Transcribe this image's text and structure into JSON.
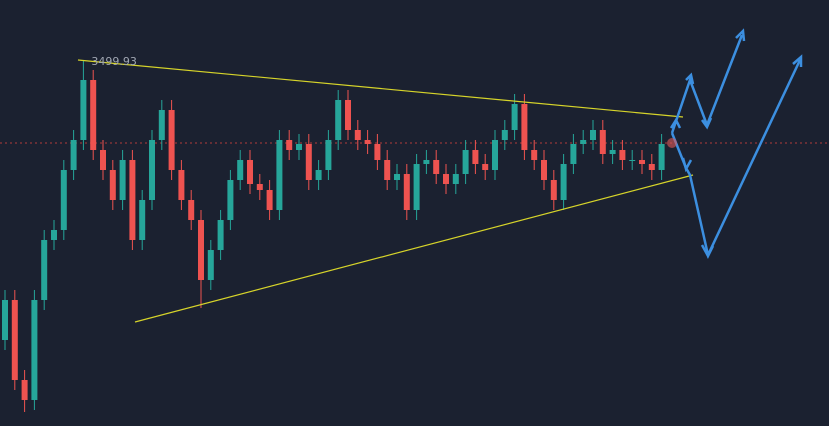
{
  "chart_data": {
    "type": "candlestick",
    "open": [
      3360,
      3380,
      3340,
      3330,
      3380,
      3410,
      3415,
      3445,
      3460,
      3490,
      3455,
      3445,
      3430,
      3450,
      3410,
      3430,
      3460,
      3475,
      3445,
      3430,
      3420,
      3390,
      3405,
      3420,
      3440,
      3450,
      3438,
      3435,
      3425,
      3460,
      3455,
      3458,
      3440,
      3445,
      3460,
      3480,
      3465,
      3460,
      3458,
      3450,
      3440,
      3443,
      3425,
      3448,
      3450,
      3443,
      3438,
      3443,
      3455,
      3448,
      3445,
      3460,
      3465,
      3478,
      3455,
      3450,
      3440,
      3430,
      3448,
      3458,
      3460,
      3465,
      3453,
      3455,
      3450,
      3450,
      3448,
      3445
    ],
    "high": [
      3385,
      3385,
      3345,
      3385,
      3415,
      3420,
      3450,
      3465,
      3499.93,
      3495,
      3460,
      3450,
      3455,
      3455,
      3435,
      3465,
      3480,
      3480,
      3450,
      3435,
      3425,
      3410,
      3425,
      3445,
      3455,
      3455,
      3443,
      3440,
      3465,
      3465,
      3463,
      3463,
      3450,
      3465,
      3485,
      3485,
      3470,
      3465,
      3463,
      3455,
      3448,
      3448,
      3453,
      3455,
      3455,
      3448,
      3448,
      3460,
      3460,
      3453,
      3465,
      3470,
      3483,
      3483,
      3460,
      3455,
      3445,
      3453,
      3463,
      3465,
      3470,
      3470,
      3460,
      3460,
      3455,
      3455,
      3453,
      3463
    ],
    "low": [
      3355,
      3335,
      3324,
      3325,
      3375,
      3405,
      3410,
      3440,
      3455,
      3450,
      3440,
      3425,
      3425,
      3405,
      3405,
      3425,
      3455,
      3440,
      3425,
      3415,
      3376,
      3385,
      3400,
      3415,
      3435,
      3433,
      3430,
      3420,
      3420,
      3450,
      3450,
      3435,
      3435,
      3440,
      3455,
      3460,
      3455,
      3453,
      3445,
      3435,
      3435,
      3420,
      3420,
      3443,
      3438,
      3433,
      3433,
      3438,
      3443,
      3440,
      3440,
      3455,
      3460,
      3450,
      3445,
      3435,
      3425,
      3425,
      3443,
      3453,
      3455,
      3448,
      3448,
      3445,
      3445,
      3443,
      3440,
      3440
    ],
    "close": [
      3380,
      3340,
      3330,
      3380,
      3410,
      3415,
      3445,
      3460,
      3490,
      3455,
      3445,
      3430,
      3450,
      3410,
      3430,
      3460,
      3475,
      3445,
      3430,
      3420,
      3390,
      3405,
      3420,
      3440,
      3450,
      3438,
      3435,
      3425,
      3460,
      3455,
      3458,
      3440,
      3445,
      3460,
      3480,
      3465,
      3460,
      3458,
      3450,
      3440,
      3443,
      3425,
      3448,
      3450,
      3443,
      3438,
      3443,
      3455,
      3448,
      3445,
      3460,
      3465,
      3478,
      3455,
      3450,
      3440,
      3430,
      3448,
      3458,
      3460,
      3465,
      3453,
      3455,
      3450,
      3450,
      3448,
      3445,
      3458
    ],
    "up_color": "#26a69a",
    "down_color": "#ef5350",
    "price_line": 3458.5,
    "price_line_color": "#b23a3a",
    "ylim": [
      3317,
      3530
    ]
  }
}
